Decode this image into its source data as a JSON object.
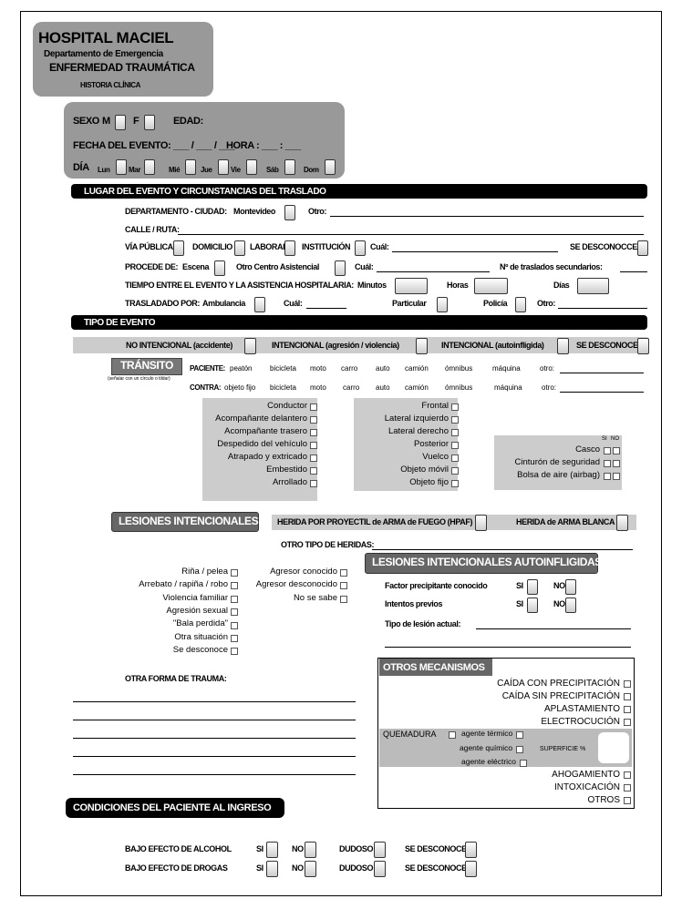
{
  "header": {
    "title": "HOSPITAL MACIEL",
    "department": "Departamento de Emergencia",
    "subtitle": "ENFERMEDAD TRAUMÁTICA",
    "document": "HISTORIA CLÍNICA"
  },
  "patient": {
    "sexo": "SEXO",
    "m": "M",
    "f": "F",
    "edad": "EDAD:",
    "fecha": "FECHA DEL EVENTO: ___ / ___ / ___",
    "hora": "HORA : ___ : ___",
    "dia": "DÍA",
    "days": [
      "Lun",
      "Mar",
      "Mié",
      "Jue",
      "Vie",
      "Sáb",
      "Dom"
    ]
  },
  "lugar": {
    "title": "LUGAR DEL EVENTO Y CIRCUNSTANCIAS DEL TRASLADO",
    "departamento": "DEPARTAMENTO - CIUDAD:",
    "montevideo": "Montevideo",
    "otro": "Otro:",
    "calle": "CALLE / RUTA:",
    "via": "VÍA PÚBLICA",
    "domicilio": "DOMICILIO",
    "laboral": "LABORAL",
    "institucion": "INSTITUCIÓN",
    "cual": "Cuál:",
    "se_desconoce": "SE DESCONOCCE",
    "procede": "PROCEDE DE:",
    "escena": "Escena",
    "otro_centro": "Otro Centro Asistencial",
    "cual2": "Cuál:",
    "n_traslados": "Nº de traslados secundarios:",
    "tiempo": "TIEMPO ENTRE EL EVENTO Y LA ASISTENCIA HOSPITALARIA:",
    "minutos": "Minutos",
    "horas": "Horas",
    "dias": "Días",
    "trasladado": "TRASLADADO POR:",
    "ambulancia": "Ambulancia",
    "cual3": "Cuál:",
    "particular": "Particular",
    "policia": "Policía",
    "otro2": "Otro:"
  },
  "tipo": {
    "title": "TIPO DE EVENTO",
    "options": [
      "NO INTENCIONAL (accidente)",
      "INTENCIONAL (agresión / violencia)",
      "INTENCIONAL (autoinfligida)",
      "SE DESCONOCE"
    ]
  },
  "transito": {
    "title": "TRÁNSITO",
    "note": "(señalar con un círculo o tildar)",
    "paciente_label": "PACIENTE:",
    "paciente": [
      "peatón",
      "bicicleta",
      "moto",
      "carro",
      "auto",
      "camión",
      "ómnibus",
      "máquina",
      "otro:"
    ],
    "contra_label": "CONTRA:",
    "contra": [
      "objeto fijo",
      "bicicleta",
      "moto",
      "carro",
      "auto",
      "camión",
      "ómnibus",
      "máquina",
      "otro:"
    ],
    "col1": [
      "Conductor",
      "Acompañante delantero",
      "Acompañante trasero",
      "Despedido del vehículo",
      "Atrapado y extricado",
      "Embestido",
      "Arrollado"
    ],
    "col2": [
      "Frontal",
      "Lateral izquierdo",
      "Lateral derecho",
      "Posterior",
      "Vuelco",
      "Objeto móvil",
      "Objeto fijo"
    ],
    "si": "SI",
    "no": "NO",
    "col3": [
      "Casco",
      "Cinturón de seguridad",
      "Bolsa de aire (airbag)"
    ]
  },
  "lesiones": {
    "title": "LESIONES INTENCIONALES",
    "hpaf": "HERIDA POR PROYECTIL de ARMA de FUEGO (HPAF)",
    "arma_blanca": "HERIDA de ARMA BLANCA",
    "otro_tipo": "OTRO TIPO DE HERIDAS:",
    "col1": [
      "Riña / pelea",
      "Arrebato / rapiña / robo",
      "Violencia familiar",
      "Agresión sexual",
      "\"Bala perdida\"",
      "Otra situación",
      "Se desconoce"
    ],
    "col2": [
      "Agresor conocido",
      "Agresor desconocido",
      "No se sabe"
    ]
  },
  "autoinfligidas": {
    "title": "LESIONES INTENCIONALES AUTOINFLIGIDAS",
    "factor": "Factor precipitante conocido",
    "intentos": "Intentos previos",
    "si": "SI",
    "no": "NO",
    "tipo": "Tipo de lesión actual:"
  },
  "otra_forma": "OTRA FORMA DE TRAUMA:",
  "otros": {
    "title": "OTROS MECANISMOS",
    "items1": [
      "CAÍDA CON PRECIPITACIÓN",
      "CAÍDA SIN PRECIPITACIÓN",
      "APLASTAMIENTO",
      "ELECTROCUCIÓN"
    ],
    "quemadura": "QUEMADURA",
    "agentes": [
      "agente térmico",
      "agente químico",
      "agente eléctrico"
    ],
    "superficie": "SUPERFICIE %",
    "items2": [
      "AHOGAMIENTO",
      "INTOXICACIÓN",
      "OTROS"
    ]
  },
  "condiciones": {
    "title": "CONDICIONES DEL PACIENTE AL INGRESO",
    "rows": [
      "BAJO EFECTO DE ALCOHOL",
      "BAJO EFECTO DE DROGAS"
    ],
    "options": [
      "SI",
      "NO",
      "DUDOSO",
      "SE DESCONOCE"
    ]
  }
}
